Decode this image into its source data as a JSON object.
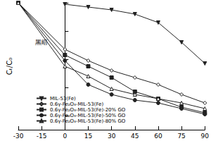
{
  "chart_data": {
    "type": "line",
    "y_label": "Cₜ/C₀",
    "x": [
      -30,
      0,
      15,
      30,
      45,
      60,
      75,
      90
    ],
    "xlim": [
      -30,
      90
    ],
    "xticks": [
      -30,
      -15,
      0,
      15,
      30,
      45,
      60,
      75,
      90
    ],
    "ylim": [
      0.1,
      1.0
    ],
    "yticks": [
      0.2,
      0.4,
      0.6,
      0.8,
      1.0
    ],
    "tick_labels": "x",
    "grid": false,
    "legend": "lower left",
    "annotations": [
      {
        "text": "黑暗",
        "x": -15,
        "y": 0.72
      }
    ],
    "series": [
      {
        "name": "MIL-53(Fe)",
        "color": "#222222",
        "marker": "triangle-down",
        "values": [
          null,
          0.99,
          0.97,
          0.95,
          0.92,
          0.86,
          0.72,
          0.57
        ]
      },
      {
        "name": "0.6γ-Fe₂O₃-MIL-53(Fe)",
        "color": "#222222",
        "marker": "diamond-open",
        "values": [
          1.0,
          0.67,
          0.59,
          0.52,
          0.47,
          0.42,
          0.35,
          0.29
        ]
      },
      {
        "name": "0.6γ-Fe₂O₃-MIL-53(Fe)-20% GO",
        "color": "#222222",
        "marker": "square",
        "values": [
          1.0,
          0.63,
          0.55,
          0.47,
          0.37,
          0.32,
          0.26,
          0.22
        ]
      },
      {
        "name": "0.6γ-Fe₂O₃-MIL-53(Fe)-50% GO",
        "color": "#222222",
        "marker": "circle",
        "values": [
          1.0,
          0.59,
          0.42,
          0.35,
          0.31,
          0.29,
          0.25,
          0.21
        ]
      },
      {
        "name": "0.6γ-Fe₂O₃-MIL-53(Fe)-80% GO",
        "color": "#222222",
        "marker": "triangle-open",
        "values": [
          1.0,
          0.55,
          0.48,
          0.39,
          0.35,
          0.32,
          0.29,
          0.25
        ]
      }
    ]
  }
}
